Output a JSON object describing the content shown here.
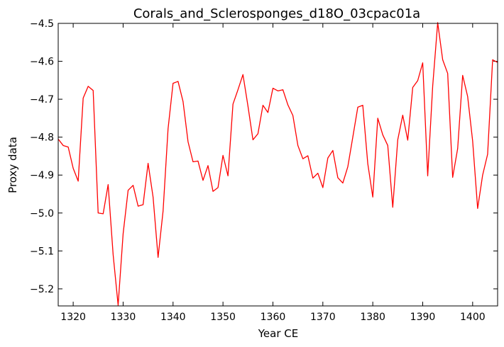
{
  "chart_data": {
    "type": "line",
    "title": "Corals_and_Sclerosponges_d18O_03cpac01a",
    "xlabel": "Year CE",
    "ylabel": "Proxy data",
    "xlim": [
      1317,
      1405
    ],
    "ylim": [
      -5.245,
      -4.5
    ],
    "xticks": [
      1320,
      1330,
      1340,
      1350,
      1360,
      1370,
      1380,
      1390,
      1400
    ],
    "xtick_labels": [
      "1320",
      "1330",
      "1340",
      "1350",
      "1360",
      "1370",
      "1380",
      "1390",
      "1400"
    ],
    "yticks": [
      -5.2,
      -5.1,
      -5.0,
      -4.9,
      -4.8,
      -4.7,
      -4.6,
      -4.5
    ],
    "ytick_labels": [
      "−5.2",
      "−5.1",
      "−5.0",
      "−4.9",
      "−4.8",
      "−4.7",
      "−4.6",
      "−4.5"
    ],
    "grid": false,
    "line_color": "#ff0000",
    "series": [
      {
        "x": [
          1317,
          1318,
          1319,
          1320,
          1321,
          1322,
          1323,
          1324,
          1325,
          1326,
          1327,
          1328,
          1329,
          1330,
          1331,
          1332,
          1333,
          1334,
          1335,
          1336,
          1337,
          1338,
          1339,
          1340,
          1341,
          1342,
          1343,
          1344,
          1345,
          1346,
          1347,
          1348,
          1349,
          1350,
          1351,
          1352,
          1353,
          1354,
          1355,
          1356,
          1357,
          1358,
          1359,
          1360,
          1361,
          1362,
          1363,
          1364,
          1365,
          1366,
          1367,
          1368,
          1369,
          1370,
          1371,
          1372,
          1373,
          1374,
          1375,
          1376,
          1377,
          1378,
          1379,
          1380,
          1381,
          1382,
          1383,
          1384,
          1385,
          1386,
          1387,
          1388,
          1389,
          1390,
          1391,
          1392,
          1393,
          1394,
          1395,
          1396,
          1397,
          1398,
          1399,
          1400,
          1401,
          1402,
          1403,
          1404,
          1405
        ],
        "y": [
          -4.805,
          -4.822,
          -4.826,
          -4.882,
          -4.916,
          -4.697,
          -4.666,
          -4.677,
          -5.0,
          -5.002,
          -4.925,
          -5.11,
          -5.243,
          -5.055,
          -4.94,
          -4.927,
          -4.982,
          -4.978,
          -4.869,
          -4.958,
          -5.117,
          -4.995,
          -4.778,
          -4.658,
          -4.653,
          -4.706,
          -4.812,
          -4.865,
          -4.863,
          -4.914,
          -4.875,
          -4.943,
          -4.933,
          -4.848,
          -4.902,
          -4.713,
          -4.675,
          -4.635,
          -4.718,
          -4.807,
          -4.791,
          -4.716,
          -4.735,
          -4.671,
          -4.678,
          -4.675,
          -4.715,
          -4.743,
          -4.822,
          -4.857,
          -4.849,
          -4.908,
          -4.895,
          -4.933,
          -4.855,
          -4.835,
          -4.907,
          -4.921,
          -4.878,
          -4.8,
          -4.721,
          -4.716,
          -4.87,
          -4.958,
          -4.75,
          -4.794,
          -4.822,
          -4.985,
          -4.807,
          -4.742,
          -4.808,
          -4.669,
          -4.651,
          -4.604,
          -4.902,
          -4.665,
          -4.498,
          -4.596,
          -4.632,
          -4.906,
          -4.83,
          -4.637,
          -4.693,
          -4.81,
          -4.988,
          -4.9,
          -4.845,
          -4.596,
          -4.603
        ]
      }
    ]
  }
}
